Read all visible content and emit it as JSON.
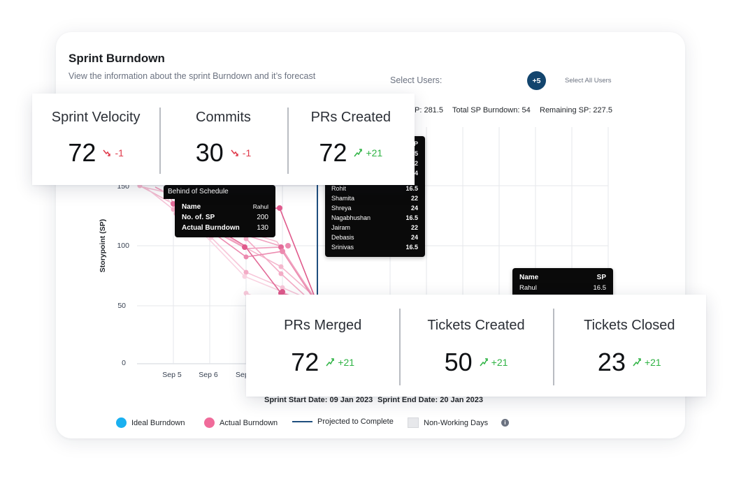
{
  "header": {
    "title": "Sprint Burndown",
    "subtitle": "View the information about the sprint Burndown and it’s forecast"
  },
  "users": {
    "select_label": "Select Users:",
    "more_badge": "+5",
    "select_all": "Select All Users"
  },
  "sp_stats": {
    "total_sp_partial": "P: 281.5",
    "total_burndown": "Total SP Burndown: 54",
    "remaining": "Remaining SP: 227.5"
  },
  "top_metrics": [
    {
      "label": "Sprint Velocity",
      "value": "72",
      "delta": "-1",
      "trend": "down"
    },
    {
      "label": "Commits",
      "value": "30",
      "delta": "-1",
      "trend": "down"
    },
    {
      "label": "PRs Created",
      "value": "72",
      "delta": "+21",
      "trend": "up"
    }
  ],
  "bottom_metrics": [
    {
      "label": "PRs Merged",
      "value": "72",
      "delta": "+21",
      "trend": "up"
    },
    {
      "label": "Tickets Created",
      "value": "50",
      "delta": "+21",
      "trend": "up"
    },
    {
      "label": "Tickets Closed",
      "value": "23",
      "delta": "+21",
      "trend": "up"
    }
  ],
  "chart": {
    "ylabel": "Storypoint (SP)",
    "y_ticks": [
      "150",
      "100",
      "50",
      "0"
    ],
    "x_ticks": [
      "Sep 5",
      "Sep 6",
      "Sep"
    ]
  },
  "tooltip_behind": {
    "title": "Behind of Schedule",
    "rows": [
      {
        "label": "Name",
        "value": "Rahul"
      },
      {
        "label": "No. of. SP",
        "value": "200"
      },
      {
        "label": "Actual Burndown",
        "value": "130"
      }
    ]
  },
  "tooltip_users": {
    "peek": [
      "P",
      "5",
      "2",
      "4"
    ],
    "rows": [
      {
        "name": "Rohit",
        "sp": "16.5"
      },
      {
        "name": "Shamita",
        "sp": "22"
      },
      {
        "name": "Shreya",
        "sp": "24"
      },
      {
        "name": "Nagabhushan",
        "sp": "16.5"
      },
      {
        "name": "Jairam",
        "sp": "22"
      },
      {
        "name": "Debasis",
        "sp": "24"
      },
      {
        "name": "Srinivas",
        "sp": "16.5"
      }
    ]
  },
  "tooltip_name_sp": {
    "header_name": "Name",
    "header_sp": "SP",
    "row_name": "Rahul",
    "row_sp": "16.5"
  },
  "sprint": {
    "start": "Sprint Start Date: 09 Jan 2023",
    "end": "Sprint End Date: 20 Jan 2023"
  },
  "legend": {
    "ideal": "Ideal Burndown",
    "actual": "Actual Burndown",
    "projected": "Projected to Complete",
    "non_working": "Non-Working Days"
  },
  "colors": {
    "ideal": "#1ab0f0",
    "actual": "#f06b9a",
    "projected": "#1e4e7e",
    "badge": "#13456e",
    "down": "#e0394a",
    "up": "#2fb344"
  }
}
